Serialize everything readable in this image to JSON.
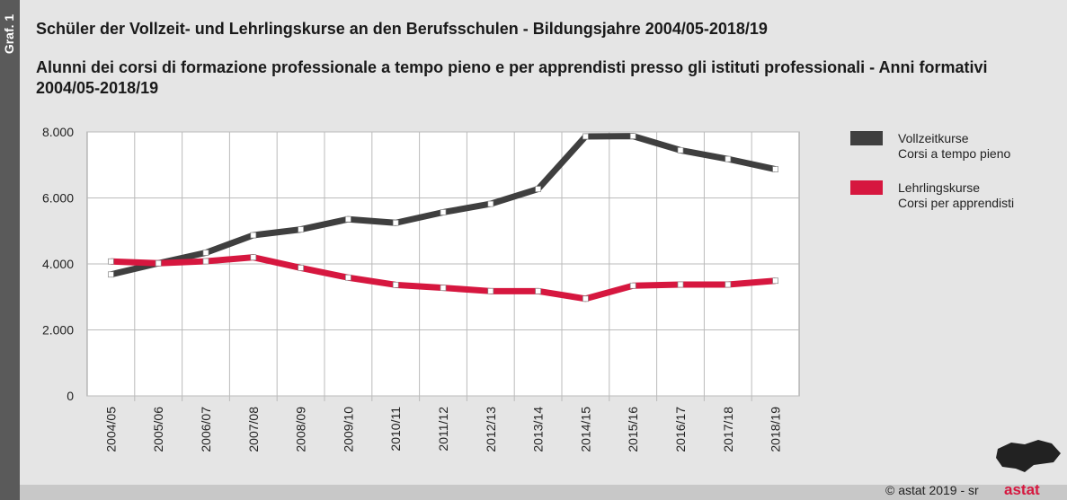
{
  "side_label": "Graf. 1",
  "title_de": "Schüler der Vollzeit- und Lehrlingskurse an den Berufsschulen - Bildungsjahre 2004/05-2018/19",
  "title_it": "Alunni dei corsi di formazione professionale a tempo pieno e per apprendisti presso gli istituti professionali - Anni formativi 2004/05-2018/19",
  "footer": {
    "copyright": "© astat 2019 - sr",
    "logo": "astat"
  },
  "chart_data": {
    "type": "line",
    "title": "Schüler der Vollzeit- und Lehrlingskurse an den Berufsschulen - Bildungsjahre 2004/05-2018/19",
    "categories": [
      "2004/05",
      "2005/06",
      "2006/07",
      "2007/08",
      "2008/09",
      "2009/10",
      "2010/11",
      "2011/12",
      "2012/13",
      "2013/14",
      "2014/15",
      "2015/16",
      "2016/17",
      "2017/18",
      "2018/19"
    ],
    "ylim": [
      0,
      8000
    ],
    "yticks": [
      0,
      2000,
      4000,
      6000,
      8000
    ],
    "ytick_labels": [
      "0",
      "2.000",
      "4.000",
      "6.000",
      "8.000"
    ],
    "grid": true,
    "legend_position": "right",
    "series": [
      {
        "name": "Vollzeitkurse",
        "name2": "Corsi a tempo pieno",
        "color": "#3f3f3f",
        "values": [
          3680,
          4020,
          4340,
          4870,
          5045,
          5355,
          5245,
          5565,
          5820,
          6270,
          7865,
          7875,
          7445,
          7180,
          6870
        ]
      },
      {
        "name": "Lehrlingskurse",
        "name2": "Corsi per apprendisti",
        "color": "#d6173f",
        "values": [
          4075,
          4020,
          4080,
          4200,
          3880,
          3585,
          3365,
          3275,
          3175,
          3175,
          2945,
          3340,
          3375,
          3375,
          3490
        ]
      }
    ]
  }
}
